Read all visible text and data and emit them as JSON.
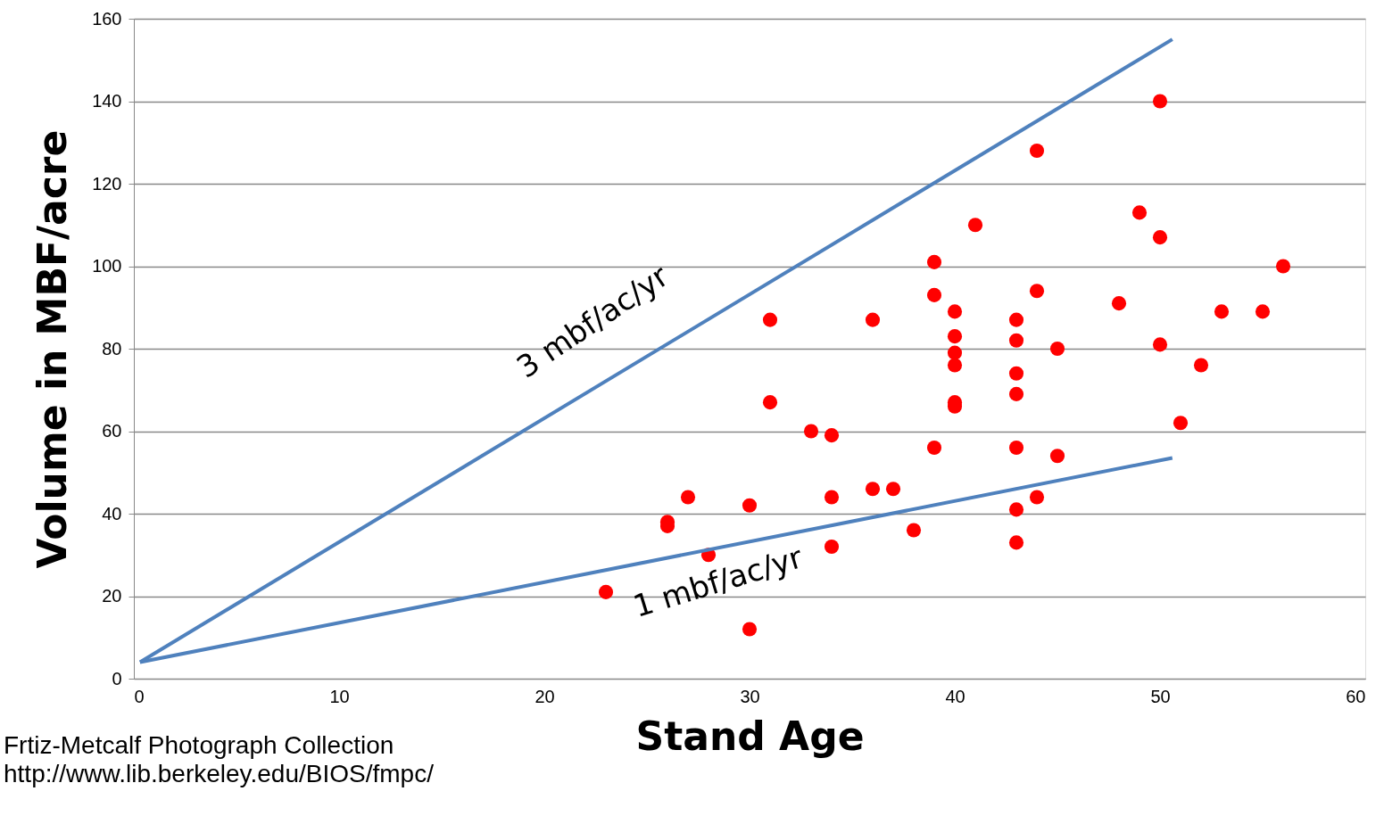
{
  "chart_data": {
    "type": "scatter",
    "xlabel": "Stand Age",
    "ylabel": "Volume in MBF/acre",
    "xlim": [
      0,
      60
    ],
    "xticks": [
      0,
      10,
      20,
      30,
      40,
      50,
      60
    ],
    "ylim": [
      0,
      160
    ],
    "yticks": [
      0,
      20,
      40,
      60,
      80,
      100,
      120,
      140,
      160
    ],
    "grid": "y",
    "series": [
      {
        "marker": "circle",
        "color": "#ff0000",
        "x": [
          23,
          26,
          26,
          27,
          28,
          30,
          30,
          31,
          31,
          33,
          34,
          34,
          34,
          36,
          36,
          37,
          38,
          39,
          39,
          39,
          40,
          40,
          40,
          40,
          40,
          40,
          41,
          43,
          43,
          43,
          43,
          43,
          43,
          43,
          44,
          44,
          44,
          45,
          45,
          48,
          49,
          50,
          50,
          50,
          51,
          52,
          53,
          55,
          56
        ],
        "values": [
          21,
          38,
          37,
          44,
          30,
          42,
          12,
          87,
          67,
          60,
          59,
          44,
          32,
          87,
          46,
          46,
          36,
          101,
          93,
          56,
          89,
          83,
          79,
          76,
          67,
          66,
          110,
          87,
          82,
          74,
          69,
          56,
          41,
          33,
          128,
          94,
          44,
          80,
          54,
          91,
          113,
          140,
          107,
          81,
          62,
          76,
          89,
          89,
          100
        ]
      },
      {
        "type": "line",
        "color": "#4f81bd",
        "line_style": "solid",
        "x": [
          0.3,
          50.6
        ],
        "values": [
          4,
          155
        ]
      },
      {
        "type": "line",
        "color": "#4f81bd",
        "line_style": "solid",
        "x": [
          0.3,
          50.6
        ],
        "values": [
          4,
          53.5
        ]
      }
    ],
    "annotations": [
      "3 mbf/ac/yr",
      "1 mbf/ac/yr",
      "Frtiz-Metcalf Photograph Collection",
      "http://www.lib.berkeley.edu/BIOS/fmpc/"
    ]
  }
}
